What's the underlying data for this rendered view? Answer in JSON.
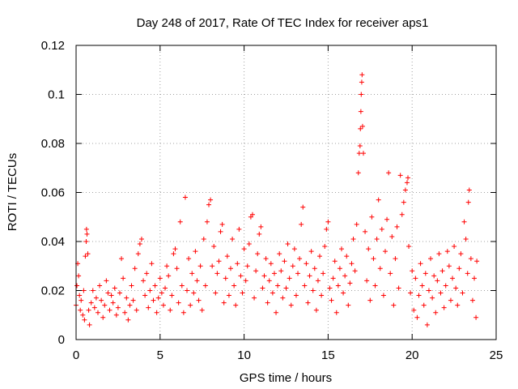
{
  "chart_data": {
    "type": "scatter",
    "title": "Day 248 of 2017, Rate Of TEC Index for receiver aps1",
    "xlabel": "GPS time / hours",
    "ylabel": "ROTI / TECUs",
    "xlim": [
      0,
      25
    ],
    "ylim": [
      0,
      0.12
    ],
    "xticks": [
      0,
      5,
      10,
      15,
      20,
      25
    ],
    "yticks": [
      0,
      0.02,
      0.04,
      0.06,
      0.08,
      0.1,
      0.12
    ],
    "xtick_labels": [
      "0",
      "5",
      "10",
      "15",
      "20",
      "25"
    ],
    "ytick_labels": [
      "0",
      "0.02",
      "0.04",
      "0.06",
      "0.08",
      "0.1",
      "0.12"
    ],
    "grid": true,
    "marker": "+",
    "series_color": "#ff0000",
    "series": [
      {
        "name": "ROTI",
        "points": [
          [
            0.0,
            0.014
          ],
          [
            0.05,
            0.022
          ],
          [
            0.1,
            0.031
          ],
          [
            0.15,
            0.026
          ],
          [
            0.2,
            0.018
          ],
          [
            0.25,
            0.012
          ],
          [
            0.3,
            0.016
          ],
          [
            0.4,
            0.01
          ],
          [
            0.45,
            0.02
          ],
          [
            0.5,
            0.008
          ],
          [
            0.55,
            0.034
          ],
          [
            0.6,
            0.04
          ],
          [
            0.62,
            0.045
          ],
          [
            0.65,
            0.043
          ],
          [
            0.7,
            0.035
          ],
          [
            0.75,
            0.012
          ],
          [
            0.8,
            0.006
          ],
          [
            0.9,
            0.015
          ],
          [
            1.0,
            0.02
          ],
          [
            1.1,
            0.013
          ],
          [
            1.2,
            0.017
          ],
          [
            1.3,
            0.011
          ],
          [
            1.4,
            0.022
          ],
          [
            1.5,
            0.016
          ],
          [
            1.6,
            0.009
          ],
          [
            1.7,
            0.014
          ],
          [
            1.8,
            0.024
          ],
          [
            1.9,
            0.019
          ],
          [
            2.0,
            0.012
          ],
          [
            2.1,
            0.018
          ],
          [
            2.2,
            0.015
          ],
          [
            2.3,
            0.021
          ],
          [
            2.4,
            0.01
          ],
          [
            2.5,
            0.013
          ],
          [
            2.6,
            0.019
          ],
          [
            2.7,
            0.033
          ],
          [
            2.8,
            0.025
          ],
          [
            2.9,
            0.011
          ],
          [
            3.0,
            0.017
          ],
          [
            3.1,
            0.008
          ],
          [
            3.2,
            0.014
          ],
          [
            3.3,
            0.022
          ],
          [
            3.4,
            0.016
          ],
          [
            3.5,
            0.029
          ],
          [
            3.6,
            0.012
          ],
          [
            3.7,
            0.035
          ],
          [
            3.8,
            0.039
          ],
          [
            3.9,
            0.041
          ],
          [
            4.0,
            0.024
          ],
          [
            4.1,
            0.018
          ],
          [
            4.2,
            0.027
          ],
          [
            4.3,
            0.013
          ],
          [
            4.4,
            0.02
          ],
          [
            4.5,
            0.031
          ],
          [
            4.6,
            0.016
          ],
          [
            4.7,
            0.022
          ],
          [
            4.8,
            0.011
          ],
          [
            4.9,
            0.017
          ],
          [
            5.0,
            0.025
          ],
          [
            5.1,
            0.019
          ],
          [
            5.2,
            0.014
          ],
          [
            5.3,
            0.021
          ],
          [
            5.4,
            0.03
          ],
          [
            5.5,
            0.026
          ],
          [
            5.6,
            0.012
          ],
          [
            5.7,
            0.018
          ],
          [
            5.8,
            0.035
          ],
          [
            5.9,
            0.037
          ],
          [
            6.0,
            0.029
          ],
          [
            6.1,
            0.015
          ],
          [
            6.2,
            0.048
          ],
          [
            6.3,
            0.022
          ],
          [
            6.4,
            0.011
          ],
          [
            6.5,
            0.058
          ],
          [
            6.6,
            0.02
          ],
          [
            6.7,
            0.033
          ],
          [
            6.8,
            0.014
          ],
          [
            6.9,
            0.027
          ],
          [
            7.0,
            0.019
          ],
          [
            7.1,
            0.036
          ],
          [
            7.2,
            0.024
          ],
          [
            7.3,
            0.016
          ],
          [
            7.4,
            0.03
          ],
          [
            7.5,
            0.012
          ],
          [
            7.6,
            0.041
          ],
          [
            7.7,
            0.022
          ],
          [
            7.8,
            0.048
          ],
          [
            7.9,
            0.055
          ],
          [
            8.0,
            0.057
          ],
          [
            8.1,
            0.03
          ],
          [
            8.2,
            0.038
          ],
          [
            8.3,
            0.019
          ],
          [
            8.4,
            0.027
          ],
          [
            8.5,
            0.032
          ],
          [
            8.6,
            0.044
          ],
          [
            8.7,
            0.047
          ],
          [
            8.8,
            0.015
          ],
          [
            8.9,
            0.025
          ],
          [
            9.0,
            0.034
          ],
          [
            9.1,
            0.018
          ],
          [
            9.2,
            0.029
          ],
          [
            9.3,
            0.041
          ],
          [
            9.4,
            0.022
          ],
          [
            9.5,
            0.014
          ],
          [
            9.6,
            0.031
          ],
          [
            9.7,
            0.045
          ],
          [
            9.8,
            0.026
          ],
          [
            9.9,
            0.019
          ],
          [
            10.0,
            0.037
          ],
          [
            10.1,
            0.024
          ],
          [
            10.2,
            0.03
          ],
          [
            10.3,
            0.039
          ],
          [
            10.4,
            0.05
          ],
          [
            10.5,
            0.051
          ],
          [
            10.6,
            0.017
          ],
          [
            10.7,
            0.028
          ],
          [
            10.8,
            0.035
          ],
          [
            10.9,
            0.043
          ],
          [
            11.0,
            0.046
          ],
          [
            11.1,
            0.021
          ],
          [
            11.2,
            0.026
          ],
          [
            11.3,
            0.033
          ],
          [
            11.4,
            0.015
          ],
          [
            11.5,
            0.024
          ],
          [
            11.6,
            0.031
          ],
          [
            11.7,
            0.019
          ],
          [
            11.8,
            0.027
          ],
          [
            11.9,
            0.011
          ],
          [
            12.0,
            0.022
          ],
          [
            12.1,
            0.035
          ],
          [
            12.2,
            0.028
          ],
          [
            12.3,
            0.017
          ],
          [
            12.4,
            0.032
          ],
          [
            12.5,
            0.021
          ],
          [
            12.6,
            0.039
          ],
          [
            12.7,
            0.025
          ],
          [
            12.8,
            0.014
          ],
          [
            12.9,
            0.03
          ],
          [
            13.0,
            0.037
          ],
          [
            13.1,
            0.018
          ],
          [
            13.2,
            0.027
          ],
          [
            13.3,
            0.033
          ],
          [
            13.4,
            0.047
          ],
          [
            13.5,
            0.054
          ],
          [
            13.6,
            0.022
          ],
          [
            13.7,
            0.031
          ],
          [
            13.8,
            0.015
          ],
          [
            13.9,
            0.026
          ],
          [
            14.0,
            0.036
          ],
          [
            14.1,
            0.02
          ],
          [
            14.2,
            0.029
          ],
          [
            14.3,
            0.012
          ],
          [
            14.4,
            0.024
          ],
          [
            14.5,
            0.034
          ],
          [
            14.6,
            0.018
          ],
          [
            14.7,
            0.027
          ],
          [
            14.8,
            0.038
          ],
          [
            14.9,
            0.045
          ],
          [
            15.0,
            0.048
          ],
          [
            15.1,
            0.021
          ],
          [
            15.2,
            0.016
          ],
          [
            15.3,
            0.025
          ],
          [
            15.4,
            0.032
          ],
          [
            15.5,
            0.011
          ],
          [
            15.6,
            0.022
          ],
          [
            15.7,
            0.029
          ],
          [
            15.8,
            0.037
          ],
          [
            15.9,
            0.019
          ],
          [
            16.0,
            0.026
          ],
          [
            16.1,
            0.034
          ],
          [
            16.2,
            0.014
          ],
          [
            16.3,
            0.023
          ],
          [
            16.4,
            0.031
          ],
          [
            16.5,
            0.041
          ],
          [
            16.6,
            0.028
          ],
          [
            16.7,
            0.047
          ],
          [
            16.8,
            0.068
          ],
          [
            16.85,
            0.076
          ],
          [
            16.9,
            0.079
          ],
          [
            16.92,
            0.086
          ],
          [
            16.95,
            0.093
          ],
          [
            16.97,
            0.1
          ],
          [
            17.0,
            0.105
          ],
          [
            17.02,
            0.108
          ],
          [
            17.05,
            0.087
          ],
          [
            17.1,
            0.076
          ],
          [
            17.2,
            0.044
          ],
          [
            17.3,
            0.024
          ],
          [
            17.4,
            0.037
          ],
          [
            17.5,
            0.016
          ],
          [
            17.6,
            0.05
          ],
          [
            17.7,
            0.033
          ],
          [
            17.8,
            0.022
          ],
          [
            17.9,
            0.041
          ],
          [
            18.0,
            0.057
          ],
          [
            18.1,
            0.029
          ],
          [
            18.2,
            0.045
          ],
          [
            18.3,
            0.018
          ],
          [
            18.4,
            0.036
          ],
          [
            18.5,
            0.049
          ],
          [
            18.6,
            0.068
          ],
          [
            18.7,
            0.027
          ],
          [
            18.8,
            0.042
          ],
          [
            18.9,
            0.014
          ],
          [
            19.0,
            0.033
          ],
          [
            19.1,
            0.046
          ],
          [
            19.2,
            0.021
          ],
          [
            19.3,
            0.067
          ],
          [
            19.4,
            0.051
          ],
          [
            19.5,
            0.056
          ],
          [
            19.6,
            0.061
          ],
          [
            19.7,
            0.064
          ],
          [
            19.75,
            0.066
          ],
          [
            19.8,
            0.038
          ],
          [
            19.9,
            0.019
          ],
          [
            20.0,
            0.028
          ],
          [
            20.1,
            0.012
          ],
          [
            20.2,
            0.025
          ],
          [
            20.3,
            0.009
          ],
          [
            20.4,
            0.018
          ],
          [
            20.5,
            0.031
          ],
          [
            20.6,
            0.022
          ],
          [
            20.7,
            0.014
          ],
          [
            20.8,
            0.027
          ],
          [
            20.9,
            0.006
          ],
          [
            21.0,
            0.02
          ],
          [
            21.1,
            0.033
          ],
          [
            21.2,
            0.017
          ],
          [
            21.3,
            0.026
          ],
          [
            21.4,
            0.011
          ],
          [
            21.5,
            0.024
          ],
          [
            21.6,
            0.035
          ],
          [
            21.7,
            0.019
          ],
          [
            21.8,
            0.028
          ],
          [
            21.9,
            0.013
          ],
          [
            22.0,
            0.022
          ],
          [
            22.1,
            0.036
          ],
          [
            22.2,
            0.03
          ],
          [
            22.3,
            0.016
          ],
          [
            22.4,
            0.025
          ],
          [
            22.5,
            0.038
          ],
          [
            22.6,
            0.021
          ],
          [
            22.7,
            0.014
          ],
          [
            22.8,
            0.029
          ],
          [
            22.9,
            0.035
          ],
          [
            23.0,
            0.019
          ],
          [
            23.1,
            0.048
          ],
          [
            23.2,
            0.041
          ],
          [
            23.3,
            0.027
          ],
          [
            23.35,
            0.056
          ],
          [
            23.4,
            0.061
          ],
          [
            23.5,
            0.033
          ],
          [
            23.6,
            0.016
          ],
          [
            23.7,
            0.025
          ],
          [
            23.8,
            0.009
          ],
          [
            23.85,
            0.032
          ]
        ]
      }
    ]
  }
}
